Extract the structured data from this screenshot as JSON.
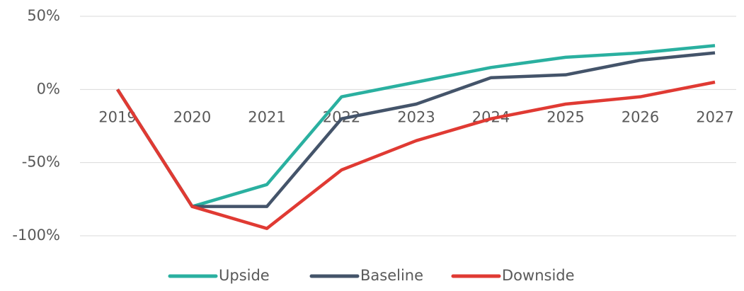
{
  "chart_data": {
    "type": "line",
    "categories": [
      "2019",
      "2020",
      "2021",
      "2022",
      "2023",
      "2024",
      "2025",
      "2026",
      "2027"
    ],
    "series": [
      {
        "name": "Upside",
        "color": "#2ab0a0",
        "values": [
          0,
          -80,
          -65,
          -5,
          5,
          15,
          22,
          25,
          30
        ]
      },
      {
        "name": "Baseline",
        "color": "#44546a",
        "values": [
          0,
          -80,
          -80,
          -20,
          -10,
          8,
          10,
          20,
          25
        ]
      },
      {
        "name": "Downside",
        "color": "#e03a33",
        "values": [
          0,
          -80,
          -95,
          -55,
          -35,
          -20,
          -10,
          -5,
          5
        ]
      }
    ],
    "ylim": [
      -100,
      50
    ],
    "yticks": [
      {
        "value": -100,
        "label": "-100%"
      },
      {
        "value": -50,
        "label": "-50%"
      },
      {
        "value": 0,
        "label": "0%"
      },
      {
        "value": 50,
        "label": "50%"
      }
    ],
    "grid": true,
    "legend": "bottom"
  }
}
